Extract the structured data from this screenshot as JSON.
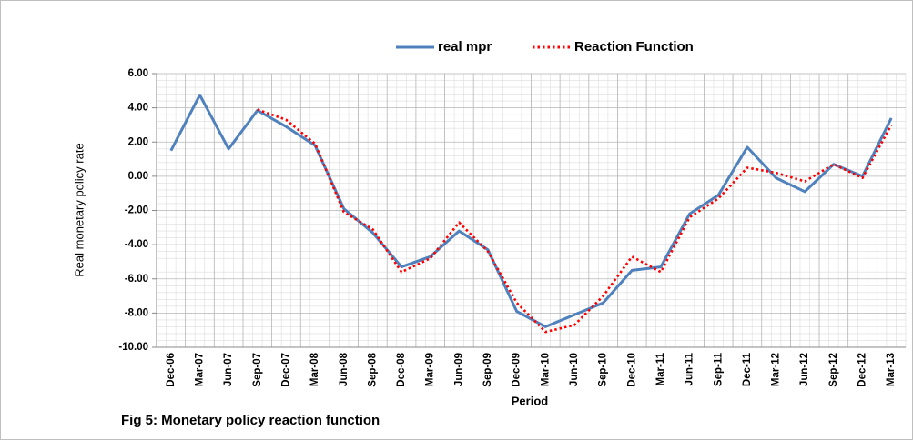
{
  "chart_data": {
    "type": "line",
    "title": "Fig 5: Monetary policy reaction function",
    "x_label": "Period",
    "y_label": "Real monetary policy rate",
    "categories": [
      "Dec-06",
      "Mar-07",
      "Jun-07",
      "Sep-07",
      "Dec-07",
      "Mar-08",
      "Jun-08",
      "Sep-08",
      "Dec-08",
      "Mar-09",
      "Jun-09",
      "Sep-09",
      "Dec-09",
      "Mar-10",
      "Jun-10",
      "Sep-10",
      "Dec-10",
      "Mar-11",
      "Jun-11",
      "Sep-11",
      "Dec-11",
      "Mar-12",
      "Jun-12",
      "Sep-12",
      "Dec-12",
      "Mar-13"
    ],
    "series": [
      {
        "name": "real mpr",
        "color": "#4f81bd",
        "style": "solid",
        "values": [
          1.5,
          4.75,
          1.6,
          3.85,
          2.9,
          1.8,
          -1.9,
          -3.3,
          -5.3,
          -4.7,
          -3.2,
          -4.3,
          -7.9,
          -8.8,
          -8.1,
          -7.4,
          -5.5,
          -5.3,
          -2.2,
          -1.1,
          1.7,
          -0.1,
          -0.9,
          0.7,
          0.0,
          3.4
        ]
      },
      {
        "name": "Reaction Function",
        "color": "#ff0000",
        "style": "dotted",
        "values": [
          null,
          null,
          null,
          3.9,
          3.3,
          1.9,
          -2.1,
          -3.1,
          -5.6,
          -4.8,
          -2.7,
          -4.4,
          -7.4,
          -9.1,
          -8.7,
          -7.0,
          -4.7,
          -5.6,
          -2.4,
          -1.3,
          0.5,
          0.2,
          -0.3,
          0.7,
          -0.1,
          3.0
        ]
      }
    ],
    "ylim": [
      -10,
      6
    ],
    "yticks": [
      {
        "value": -10,
        "label": "-10.00"
      },
      {
        "value": -8,
        "label": "-8.00"
      },
      {
        "value": -6,
        "label": "-6.00"
      },
      {
        "value": -4,
        "label": "-4.00"
      },
      {
        "value": -2,
        "label": "-2.00"
      },
      {
        "value": 0,
        "label": "0.00"
      },
      {
        "value": 2,
        "label": "2.00"
      },
      {
        "value": 4,
        "label": "4.00"
      },
      {
        "value": 6,
        "label": "6.00"
      }
    ],
    "grid": true,
    "legend": "top"
  }
}
